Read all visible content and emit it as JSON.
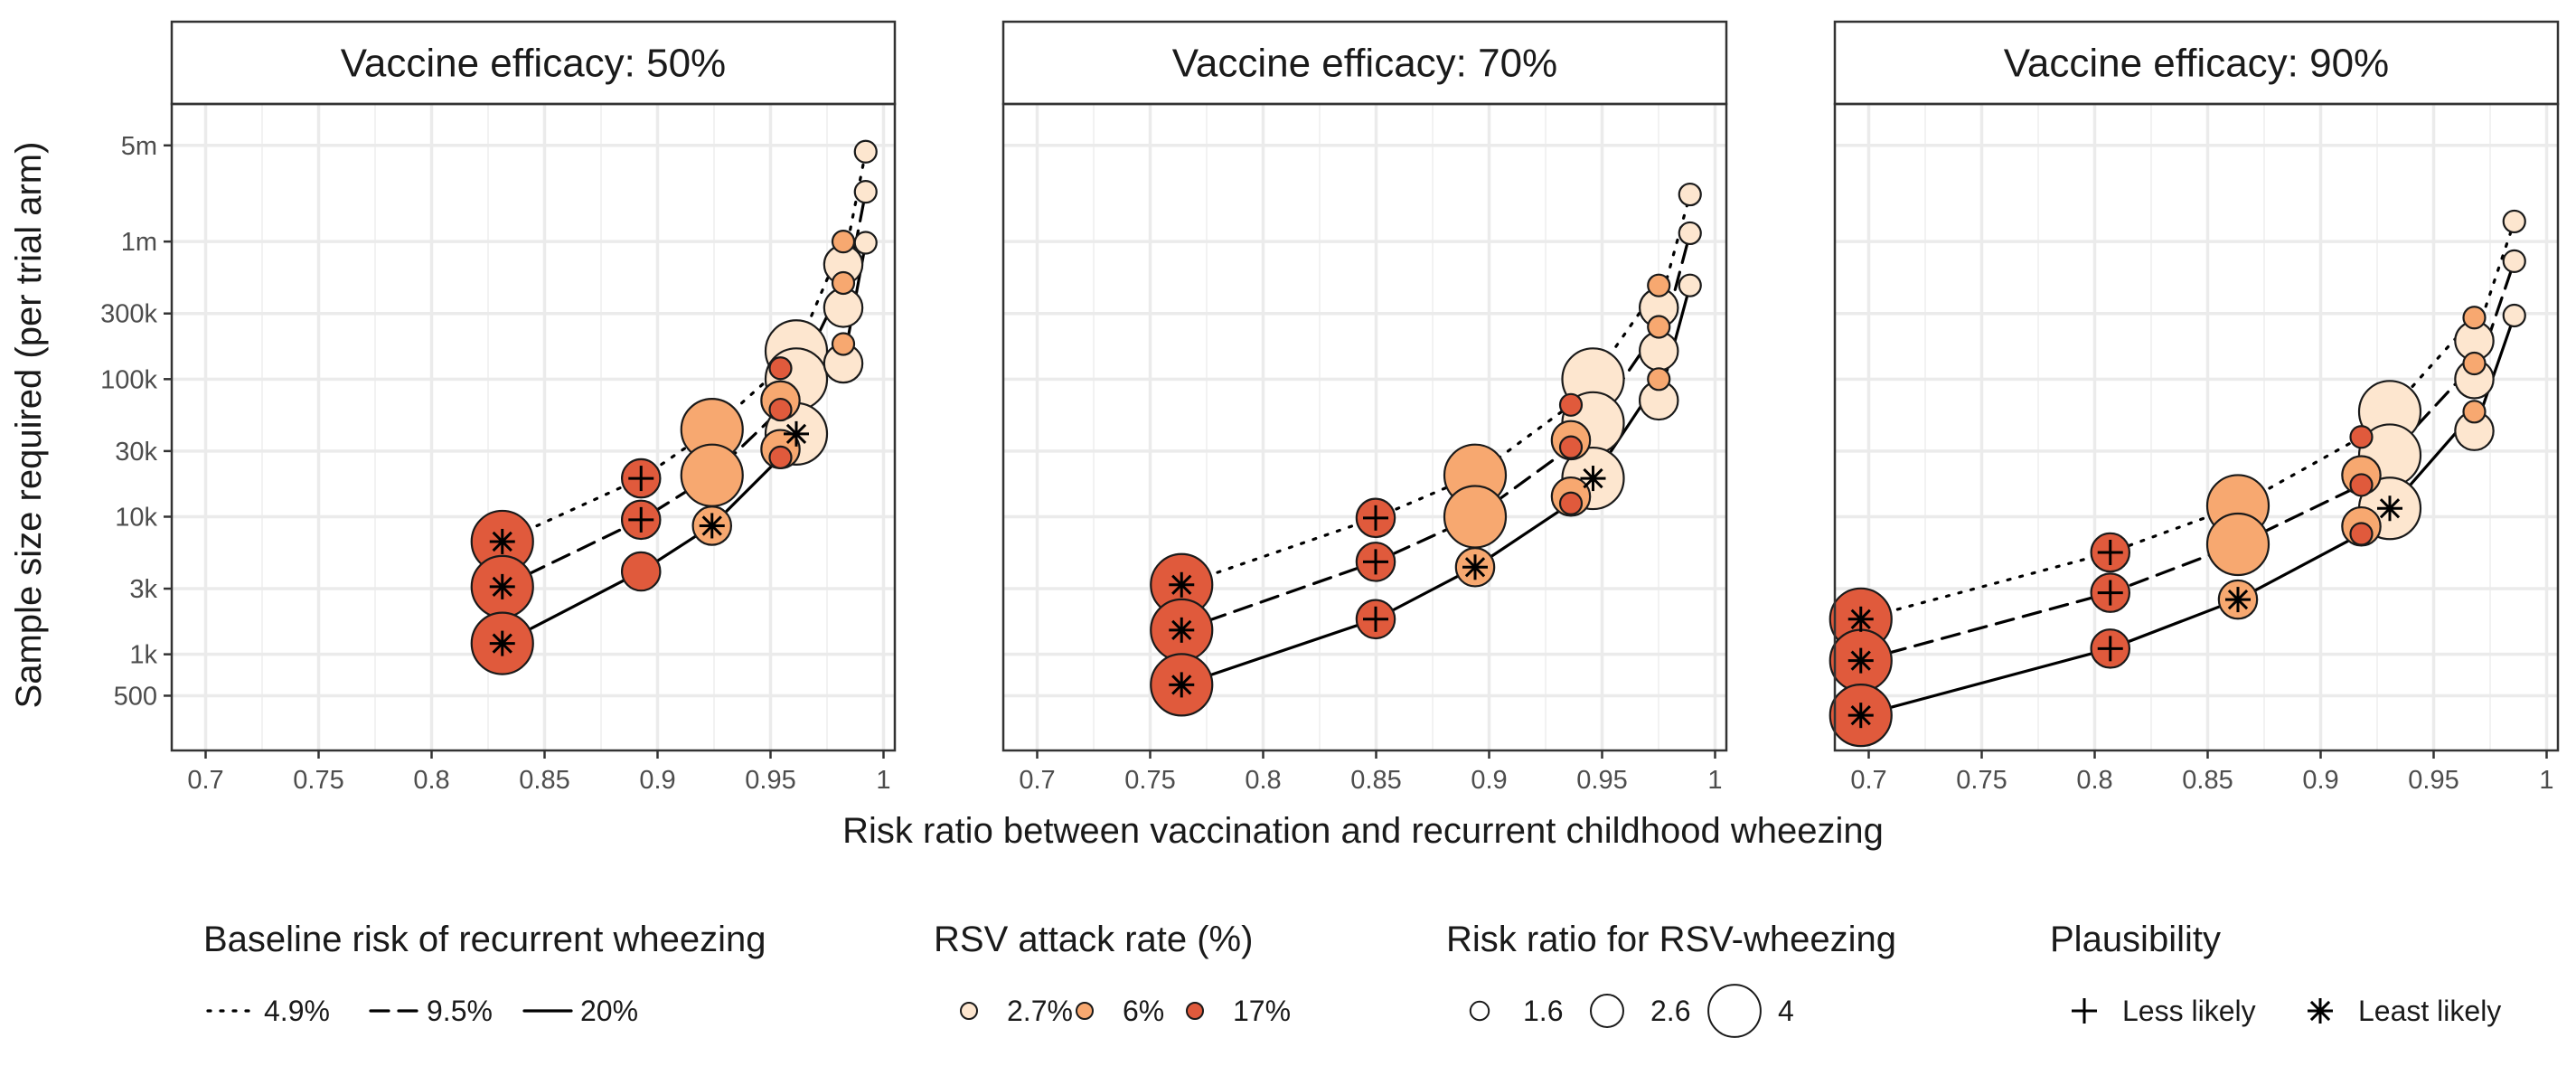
{
  "chart_data": {
    "type": "scatter",
    "xlabel": "Risk ratio between vaccination and recurrent childhood wheezing",
    "ylabel": "Sample size required (per trial arm)",
    "y_scale": "log",
    "ylim": [
      200,
      10000000
    ],
    "xlim": [
      0.685,
      1.005
    ],
    "x_ticks": [
      0.7,
      0.75,
      0.8,
      0.85,
      0.9,
      0.95,
      1.0
    ],
    "x_tick_labels": [
      "0.7",
      "0.75",
      "0.8",
      "0.85",
      "0.9",
      "0.95",
      "1"
    ],
    "y_ticks": [
      500,
      1000,
      3000,
      10000,
      30000,
      100000,
      300000,
      1000000,
      5000000
    ],
    "y_tick_labels": [
      "500",
      "1k",
      "3k",
      "10k",
      "30k",
      "100k",
      "300k",
      "1m",
      "5m"
    ],
    "grid": true,
    "colors": {
      "rsv_2_7": "#fde6cf",
      "rsv_6": "#f7a870",
      "rsv_17": "#e05a3c",
      "line": "#000000",
      "grid": "#ebebeb"
    },
    "panels": [
      {
        "title": "Vaccine efficacy: 50%",
        "series": [
          {
            "baseline": "4.9%",
            "points": [
              {
                "x": 0.8313,
                "y": 6600,
                "rsv": "17%",
                "rr": 4,
                "plaus": "Least likely"
              },
              {
                "x": 0.8927,
                "y": 19000,
                "rsv": "17%",
                "rr": 2.6,
                "plaus": "Less likely"
              },
              {
                "x": 0.9241,
                "y": 43000,
                "rsv": "6%",
                "rr": 4
              },
              {
                "x": 0.9544,
                "y": 120000,
                "rsv": "17%",
                "rr": 1.6
              },
              {
                "x": 0.9614,
                "y": 160000,
                "rsv": "2.7%",
                "rr": 4
              },
              {
                "x": 0.9822,
                "y": 1000000,
                "rsv": "6%",
                "rr": 1.6
              },
              {
                "x": 0.9822,
                "y": 680000,
                "rsv": "2.7%",
                "rr": 2.6
              },
              {
                "x": 0.9921,
                "y": 4500000,
                "rsv": "2.7%",
                "rr": 1.6
              }
            ]
          },
          {
            "baseline": "9.5%",
            "points": [
              {
                "x": 0.8313,
                "y": 3100,
                "rsv": "17%",
                "rr": 4,
                "plaus": "Least likely"
              },
              {
                "x": 0.8927,
                "y": 9500,
                "rsv": "17%",
                "rr": 2.6,
                "plaus": "Less likely"
              },
              {
                "x": 0.9241,
                "y": 20000,
                "rsv": "6%",
                "rr": 4
              },
              {
                "x": 0.9544,
                "y": 60000,
                "rsv": "17%",
                "rr": 1.6
              },
              {
                "x": 0.9544,
                "y": 70000,
                "rsv": "6%",
                "rr": 2.6
              },
              {
                "x": 0.9614,
                "y": 100000,
                "rsv": "2.7%",
                "rr": 4
              },
              {
                "x": 0.9822,
                "y": 500000,
                "rsv": "6%",
                "rr": 1.6
              },
              {
                "x": 0.9822,
                "y": 330000,
                "rsv": "2.7%",
                "rr": 2.6
              },
              {
                "x": 0.9921,
                "y": 2300000,
                "rsv": "2.7%",
                "rr": 1.6
              }
            ]
          },
          {
            "baseline": "20%",
            "points": [
              {
                "x": 0.8313,
                "y": 1200,
                "rsv": "17%",
                "rr": 4,
                "plaus": "Least likely"
              },
              {
                "x": 0.8927,
                "y": 4000,
                "rsv": "17%",
                "rr": 2.6
              },
              {
                "x": 0.9241,
                "y": 8600,
                "rsv": "6%",
                "rr": 2.6,
                "plaus": "Least likely"
              },
              {
                "x": 0.9544,
                "y": 27000,
                "rsv": "17%",
                "rr": 1.6
              },
              {
                "x": 0.9544,
                "y": 31000,
                "rsv": "6%",
                "rr": 2.6
              },
              {
                "x": 0.9614,
                "y": 40000,
                "rsv": "2.7%",
                "rr": 4,
                "plaus": "Least likely"
              },
              {
                "x": 0.9822,
                "y": 180000,
                "rsv": "6%",
                "rr": 1.6
              },
              {
                "x": 0.9822,
                "y": 130000,
                "rsv": "2.7%",
                "rr": 2.6
              },
              {
                "x": 0.9921,
                "y": 980000,
                "rsv": "2.7%",
                "rr": 1.6
              }
            ]
          }
        ]
      },
      {
        "title": "Vaccine efficacy: 70%",
        "series": [
          {
            "baseline": "4.9%",
            "points": [
              {
                "x": 0.7639,
                "y": 3200,
                "rsv": "17%",
                "rr": 4,
                "plaus": "Least likely"
              },
              {
                "x": 0.8498,
                "y": 9800,
                "rsv": "17%",
                "rr": 2.6,
                "plaus": "Less likely"
              },
              {
                "x": 0.8938,
                "y": 20000,
                "rsv": "6%",
                "rr": 4
              },
              {
                "x": 0.9362,
                "y": 65000,
                "rsv": "17%",
                "rr": 1.6
              },
              {
                "x": 0.946,
                "y": 100000,
                "rsv": "2.7%",
                "rr": 4
              },
              {
                "x": 0.9751,
                "y": 480000,
                "rsv": "6%",
                "rr": 1.6
              },
              {
                "x": 0.9751,
                "y": 330000,
                "rsv": "2.7%",
                "rr": 2.6
              },
              {
                "x": 0.9889,
                "y": 2200000,
                "rsv": "2.7%",
                "rr": 1.6
              }
            ]
          },
          {
            "baseline": "9.5%",
            "points": [
              {
                "x": 0.7639,
                "y": 1500,
                "rsv": "17%",
                "rr": 4,
                "plaus": "Least likely"
              },
              {
                "x": 0.8498,
                "y": 4700,
                "rsv": "17%",
                "rr": 2.6,
                "plaus": "Less likely"
              },
              {
                "x": 0.8938,
                "y": 10000,
                "rsv": "6%",
                "rr": 4
              },
              {
                "x": 0.9362,
                "y": 32000,
                "rsv": "17%",
                "rr": 1.6
              },
              {
                "x": 0.9362,
                "y": 36000,
                "rsv": "6%",
                "rr": 2.6
              },
              {
                "x": 0.946,
                "y": 48000,
                "rsv": "2.7%",
                "rr": 4
              },
              {
                "x": 0.9751,
                "y": 240000,
                "rsv": "6%",
                "rr": 1.6
              },
              {
                "x": 0.9751,
                "y": 160000,
                "rsv": "2.7%",
                "rr": 2.6
              },
              {
                "x": 0.9889,
                "y": 1150000,
                "rsv": "2.7%",
                "rr": 1.6
              }
            ]
          },
          {
            "baseline": "20%",
            "points": [
              {
                "x": 0.7639,
                "y": 600,
                "rsv": "17%",
                "rr": 4,
                "plaus": "Least likely"
              },
              {
                "x": 0.8498,
                "y": 1800,
                "rsv": "17%",
                "rr": 2.6,
                "plaus": "Less likely"
              },
              {
                "x": 0.8938,
                "y": 4300,
                "rsv": "6%",
                "rr": 2.6,
                "plaus": "Least likely"
              },
              {
                "x": 0.9362,
                "y": 12500,
                "rsv": "17%",
                "rr": 1.6
              },
              {
                "x": 0.9362,
                "y": 14000,
                "rsv": "6%",
                "rr": 2.6
              },
              {
                "x": 0.946,
                "y": 19000,
                "rsv": "2.7%",
                "rr": 4,
                "plaus": "Least likely"
              },
              {
                "x": 0.9751,
                "y": 100000,
                "rsv": "6%",
                "rr": 1.6
              },
              {
                "x": 0.9751,
                "y": 70000,
                "rsv": "2.7%",
                "rr": 2.6
              },
              {
                "x": 0.9889,
                "y": 480000,
                "rsv": "2.7%",
                "rr": 1.6
              }
            ]
          }
        ]
      },
      {
        "title": "Vaccine efficacy: 90%",
        "series": [
          {
            "baseline": "4.9%",
            "points": [
              {
                "x": 0.6965,
                "y": 1800,
                "rsv": "17%",
                "rr": 4,
                "plaus": "Least likely"
              },
              {
                "x": 0.8069,
                "y": 5500,
                "rsv": "17%",
                "rr": 2.6,
                "plaus": "Less likely"
              },
              {
                "x": 0.8634,
                "y": 12000,
                "rsv": "6%",
                "rr": 4
              },
              {
                "x": 0.918,
                "y": 38000,
                "rsv": "17%",
                "rr": 1.6
              },
              {
                "x": 0.9306,
                "y": 58000,
                "rsv": "2.7%",
                "rr": 4
              },
              {
                "x": 0.968,
                "y": 280000,
                "rsv": "6%",
                "rr": 1.6
              },
              {
                "x": 0.968,
                "y": 190000,
                "rsv": "2.7%",
                "rr": 2.6
              },
              {
                "x": 0.9857,
                "y": 1400000,
                "rsv": "2.7%",
                "rr": 1.6
              }
            ]
          },
          {
            "baseline": "9.5%",
            "points": [
              {
                "x": 0.6965,
                "y": 900,
                "rsv": "17%",
                "rr": 4,
                "plaus": "Least likely"
              },
              {
                "x": 0.8069,
                "y": 2800,
                "rsv": "17%",
                "rr": 2.6,
                "plaus": "Less likely"
              },
              {
                "x": 0.8634,
                "y": 6300,
                "rsv": "6%",
                "rr": 4
              },
              {
                "x": 0.918,
                "y": 17000,
                "rsv": "17%",
                "rr": 1.6
              },
              {
                "x": 0.918,
                "y": 20000,
                "rsv": "6%",
                "rr": 2.6
              },
              {
                "x": 0.9306,
                "y": 28000,
                "rsv": "2.7%",
                "rr": 4
              },
              {
                "x": 0.968,
                "y": 130000,
                "rsv": "6%",
                "rr": 1.6
              },
              {
                "x": 0.968,
                "y": 100000,
                "rsv": "2.7%",
                "rr": 2.6
              },
              {
                "x": 0.9857,
                "y": 720000,
                "rsv": "2.7%",
                "rr": 1.6
              }
            ]
          },
          {
            "baseline": "20%",
            "points": [
              {
                "x": 0.6965,
                "y": 360,
                "rsv": "17%",
                "rr": 4,
                "plaus": "Least likely"
              },
              {
                "x": 0.8069,
                "y": 1100,
                "rsv": "17%",
                "rr": 2.6,
                "plaus": "Less likely"
              },
              {
                "x": 0.8634,
                "y": 2500,
                "rsv": "6%",
                "rr": 2.6,
                "plaus": "Least likely"
              },
              {
                "x": 0.918,
                "y": 7500,
                "rsv": "17%",
                "rr": 1.6
              },
              {
                "x": 0.918,
                "y": 8500,
                "rsv": "6%",
                "rr": 2.6
              },
              {
                "x": 0.9306,
                "y": 11500,
                "rsv": "2.7%",
                "rr": 4,
                "plaus": "Least likely"
              },
              {
                "x": 0.968,
                "y": 58000,
                "rsv": "6%",
                "rr": 1.6
              },
              {
                "x": 0.968,
                "y": 42000,
                "rsv": "2.7%",
                "rr": 2.6
              },
              {
                "x": 0.9857,
                "y": 290000,
                "rsv": "2.7%",
                "rr": 1.6
              }
            ]
          }
        ]
      }
    ],
    "legends": {
      "baseline": {
        "title": "Baseline risk of recurrent wheezing",
        "items": [
          {
            "label": "4.9%",
            "dash": "dotted"
          },
          {
            "label": "9.5%",
            "dash": "dashed"
          },
          {
            "label": "20%",
            "dash": "solid"
          }
        ]
      },
      "rsv": {
        "title": "RSV attack rate (%)",
        "items": [
          {
            "label": "2.7%",
            "color": "#fde6cf"
          },
          {
            "label": "6%",
            "color": "#f7a870"
          },
          {
            "label": "17%",
            "color": "#e05a3c"
          }
        ]
      },
      "rr": {
        "title": "Risk ratio for RSV-wheezing",
        "items": [
          {
            "label": "1.6",
            "value": 1.6
          },
          {
            "label": "2.6",
            "value": 2.6
          },
          {
            "label": "4",
            "value": 4
          }
        ]
      },
      "plausibility": {
        "title": "Plausibility",
        "items": [
          {
            "label": "Less likely",
            "shape": "plus"
          },
          {
            "label": "Least likely",
            "shape": "asterisk"
          }
        ]
      }
    }
  }
}
